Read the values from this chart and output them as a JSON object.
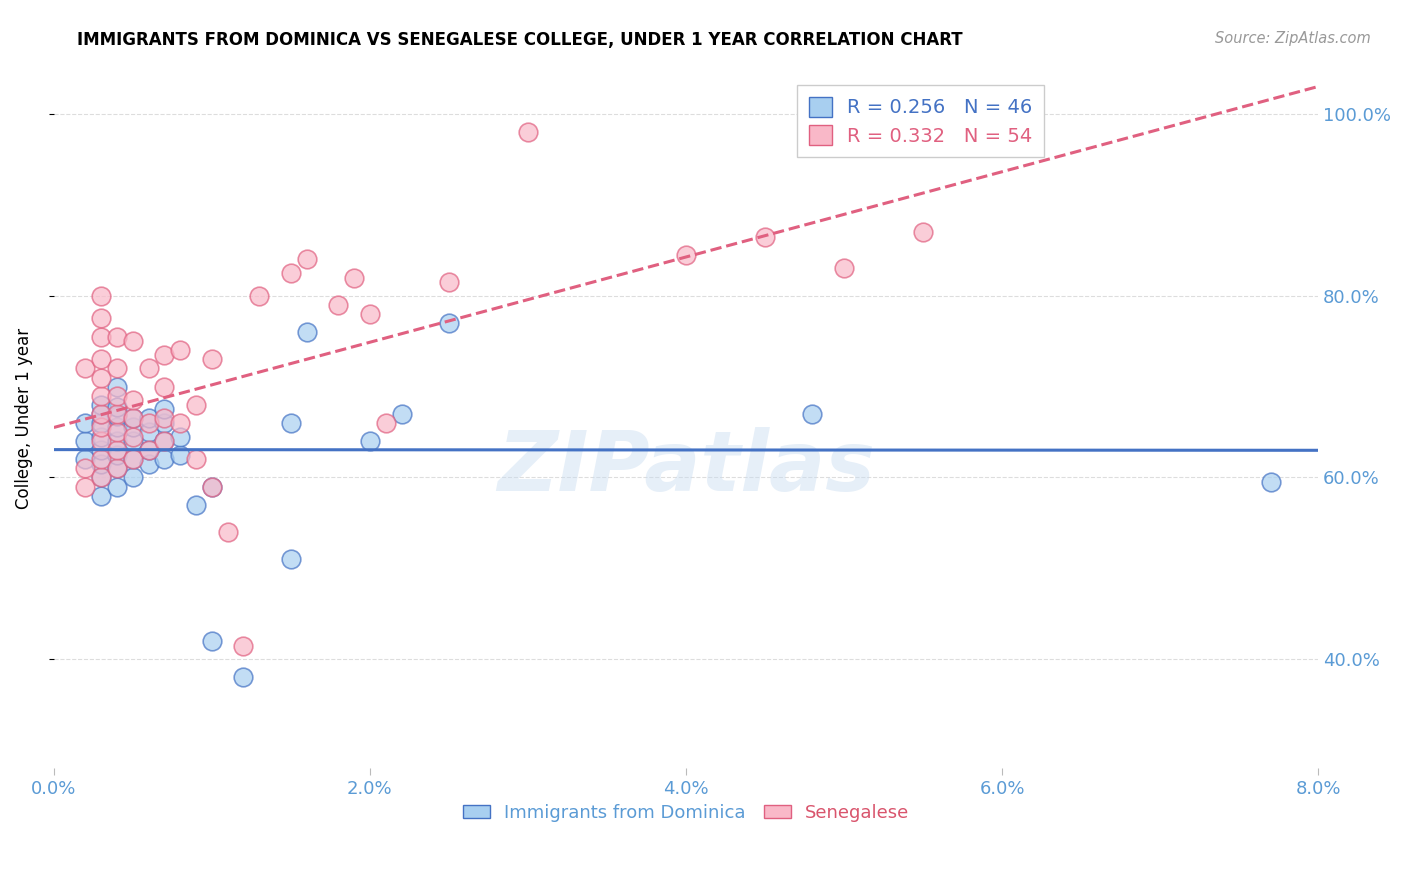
{
  "title": "IMMIGRANTS FROM DOMINICA VS SENEGALESE COLLEGE, UNDER 1 YEAR CORRELATION CHART",
  "source": "Source: ZipAtlas.com",
  "xlabel_blue": "Immigrants from Dominica",
  "xlabel_pink": "Senegalese",
  "ylabel": "College, Under 1 year",
  "xmin": 0.0,
  "xmax": 0.08,
  "ymin": 0.28,
  "ymax": 1.05,
  "ytick_labels": [
    "40.0%",
    "60.0%",
    "80.0%",
    "100.0%"
  ],
  "ytick_values": [
    0.4,
    0.6,
    0.8,
    1.0
  ],
  "xtick_labels": [
    "0.0%",
    "2.0%",
    "4.0%",
    "6.0%",
    "8.0%"
  ],
  "xtick_values": [
    0.0,
    0.02,
    0.04,
    0.06,
    0.08
  ],
  "legend_blue_r": "0.256",
  "legend_blue_n": "46",
  "legend_pink_r": "0.332",
  "legend_pink_n": "54",
  "blue_color": "#A8CFF0",
  "pink_color": "#F9B8C8",
  "blue_line_color": "#4472C4",
  "pink_line_color": "#E06080",
  "blue_scatter": [
    [
      0.002,
      0.62
    ],
    [
      0.002,
      0.64
    ],
    [
      0.002,
      0.66
    ],
    [
      0.003,
      0.58
    ],
    [
      0.003,
      0.6
    ],
    [
      0.003,
      0.615
    ],
    [
      0.003,
      0.63
    ],
    [
      0.003,
      0.645
    ],
    [
      0.003,
      0.66
    ],
    [
      0.003,
      0.67
    ],
    [
      0.003,
      0.68
    ],
    [
      0.004,
      0.59
    ],
    [
      0.004,
      0.61
    ],
    [
      0.004,
      0.625
    ],
    [
      0.004,
      0.64
    ],
    [
      0.004,
      0.655
    ],
    [
      0.004,
      0.668
    ],
    [
      0.004,
      0.678
    ],
    [
      0.005,
      0.6
    ],
    [
      0.005,
      0.62
    ],
    [
      0.005,
      0.64
    ],
    [
      0.005,
      0.655
    ],
    [
      0.005,
      0.665
    ],
    [
      0.006,
      0.615
    ],
    [
      0.006,
      0.63
    ],
    [
      0.006,
      0.65
    ],
    [
      0.006,
      0.665
    ],
    [
      0.007,
      0.62
    ],
    [
      0.007,
      0.64
    ],
    [
      0.007,
      0.66
    ],
    [
      0.007,
      0.675
    ],
    [
      0.008,
      0.625
    ],
    [
      0.008,
      0.645
    ],
    [
      0.009,
      0.57
    ],
    [
      0.01,
      0.59
    ],
    [
      0.01,
      0.42
    ],
    [
      0.012,
      0.38
    ],
    [
      0.015,
      0.66
    ],
    [
      0.015,
      0.51
    ],
    [
      0.016,
      0.76
    ],
    [
      0.02,
      0.64
    ],
    [
      0.022,
      0.67
    ],
    [
      0.025,
      0.77
    ],
    [
      0.048,
      0.67
    ],
    [
      0.077,
      0.595
    ],
    [
      0.004,
      0.7
    ]
  ],
  "pink_scatter": [
    [
      0.002,
      0.59
    ],
    [
      0.002,
      0.61
    ],
    [
      0.002,
      0.72
    ],
    [
      0.003,
      0.6
    ],
    [
      0.003,
      0.62
    ],
    [
      0.003,
      0.64
    ],
    [
      0.003,
      0.655
    ],
    [
      0.003,
      0.67
    ],
    [
      0.003,
      0.69
    ],
    [
      0.003,
      0.71
    ],
    [
      0.003,
      0.73
    ],
    [
      0.003,
      0.755
    ],
    [
      0.003,
      0.775
    ],
    [
      0.003,
      0.8
    ],
    [
      0.004,
      0.61
    ],
    [
      0.004,
      0.63
    ],
    [
      0.004,
      0.65
    ],
    [
      0.004,
      0.67
    ],
    [
      0.004,
      0.69
    ],
    [
      0.004,
      0.72
    ],
    [
      0.004,
      0.755
    ],
    [
      0.005,
      0.62
    ],
    [
      0.005,
      0.645
    ],
    [
      0.005,
      0.665
    ],
    [
      0.005,
      0.685
    ],
    [
      0.005,
      0.75
    ],
    [
      0.006,
      0.63
    ],
    [
      0.006,
      0.66
    ],
    [
      0.006,
      0.72
    ],
    [
      0.007,
      0.64
    ],
    [
      0.007,
      0.665
    ],
    [
      0.007,
      0.7
    ],
    [
      0.007,
      0.735
    ],
    [
      0.008,
      0.66
    ],
    [
      0.008,
      0.74
    ],
    [
      0.009,
      0.62
    ],
    [
      0.009,
      0.68
    ],
    [
      0.01,
      0.59
    ],
    [
      0.01,
      0.73
    ],
    [
      0.011,
      0.54
    ],
    [
      0.012,
      0.415
    ],
    [
      0.013,
      0.8
    ],
    [
      0.015,
      0.825
    ],
    [
      0.016,
      0.84
    ],
    [
      0.018,
      0.79
    ],
    [
      0.019,
      0.82
    ],
    [
      0.02,
      0.78
    ],
    [
      0.021,
      0.66
    ],
    [
      0.025,
      0.815
    ],
    [
      0.03,
      0.98
    ],
    [
      0.04,
      0.845
    ],
    [
      0.045,
      0.865
    ],
    [
      0.05,
      0.83
    ],
    [
      0.055,
      0.87
    ]
  ],
  "watermark": "ZIPatlas",
  "background_color": "#FFFFFF",
  "grid_color": "#DDDDDD",
  "title_fontsize": 12,
  "tick_label_color": "#5B9BD5",
  "pink_label_color": "#D9556D"
}
